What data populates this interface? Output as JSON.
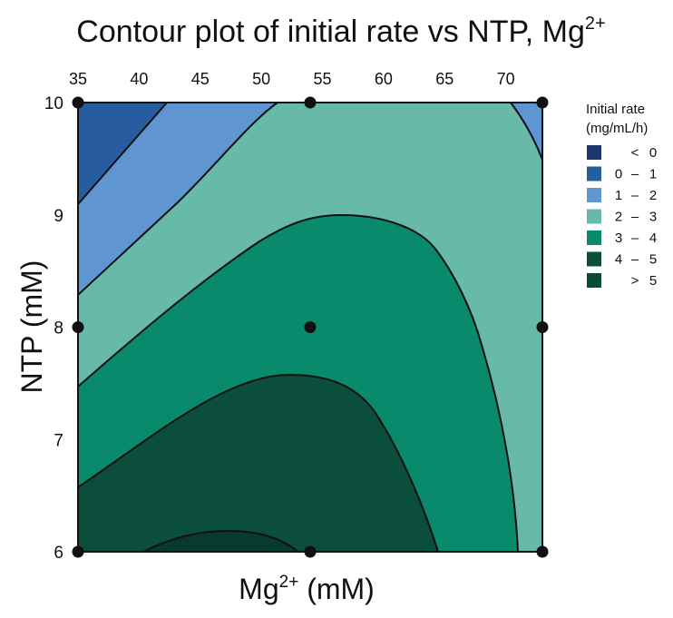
{
  "chart_data": {
    "type": "contour",
    "title": "Contour plot of initial rate vs NTP, Mg",
    "title_superscript": "2+",
    "xlabel": "Mg",
    "xlabel_superscript": "2+",
    "xlabel_unit": " (mM)",
    "ylabel": "NTP (mM)",
    "x_ticks": [
      35,
      40,
      45,
      50,
      55,
      60,
      65,
      70
    ],
    "y_ticks": [
      6,
      7,
      8,
      9,
      10
    ],
    "xlim": [
      35,
      73
    ],
    "ylim": [
      6,
      10
    ],
    "x_axis_position": "top",
    "design_points": [
      {
        "mg": 35,
        "ntp": 6
      },
      {
        "mg": 35,
        "ntp": 8
      },
      {
        "mg": 35,
        "ntp": 10
      },
      {
        "mg": 54,
        "ntp": 6
      },
      {
        "mg": 54,
        "ntp": 8
      },
      {
        "mg": 54,
        "ntp": 10
      },
      {
        "mg": 73,
        "ntp": 6
      },
      {
        "mg": 73,
        "ntp": 8
      },
      {
        "mg": 73,
        "ntp": 10
      }
    ],
    "legend": {
      "title_line1": "Initial rate",
      "title_line2": "(mg/mL/h)",
      "placement": "right",
      "entries": [
        {
          "lo": "",
          "sep": "<",
          "hi": "0",
          "color": "#1b3868"
        },
        {
          "lo": "0",
          "sep": "–",
          "hi": "1",
          "color": "#275da0"
        },
        {
          "lo": "1",
          "sep": "–",
          "hi": "2",
          "color": "#5f95d0"
        },
        {
          "lo": "2",
          "sep": "–",
          "hi": "3",
          "color": "#67b9aa"
        },
        {
          "lo": "3",
          "sep": "–",
          "hi": "4",
          "color": "#0a8a6d"
        },
        {
          "lo": "4",
          "sep": "–",
          "hi": "5",
          "color": "#0b4e3c"
        },
        {
          "lo": "",
          "sep": ">",
          "hi": "5",
          "color": "#0a4a38"
        }
      ]
    },
    "level_regions_present": [
      "0 – 1",
      "1 – 2",
      "2 – 3",
      "3 – 4",
      "4 – 5",
      "> 5"
    ]
  }
}
